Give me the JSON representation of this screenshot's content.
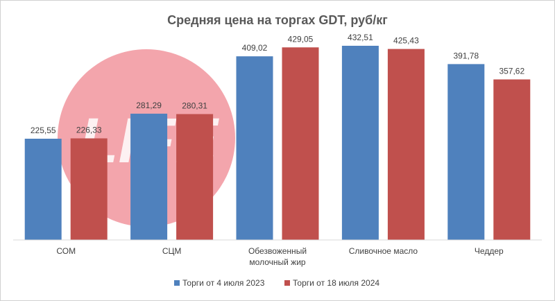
{
  "chart_data": {
    "type": "bar",
    "title": "Средняя цена на торгах GDT, руб/кг",
    "categories": [
      [
        "СОМ"
      ],
      [
        "СЦМ"
      ],
      [
        "Обезвоженный",
        "молочный жир"
      ],
      [
        "Сливочное масло"
      ],
      [
        "Чеддер"
      ]
    ],
    "series": [
      {
        "name": "Торги от 4 июля 2023",
        "color": "#4f81bd",
        "values": [
          225.55,
          281.29,
          409.02,
          432.51,
          391.78
        ],
        "labels": [
          "225,55",
          "281,29",
          "409,02",
          "432,51",
          "391,78"
        ]
      },
      {
        "name": "Торги от 18 июля 2024",
        "color": "#c0504d",
        "values": [
          226.33,
          280.31,
          429.05,
          425.43,
          357.62
        ],
        "labels": [
          "226,33",
          "280,31",
          "429,05",
          "425,43",
          "357,62"
        ]
      }
    ],
    "ylim": [
      0,
      450
    ],
    "grid": false,
    "legend": "bottom"
  },
  "watermark": {
    "color": "#f2a0a8",
    "text": "LIFE"
  }
}
